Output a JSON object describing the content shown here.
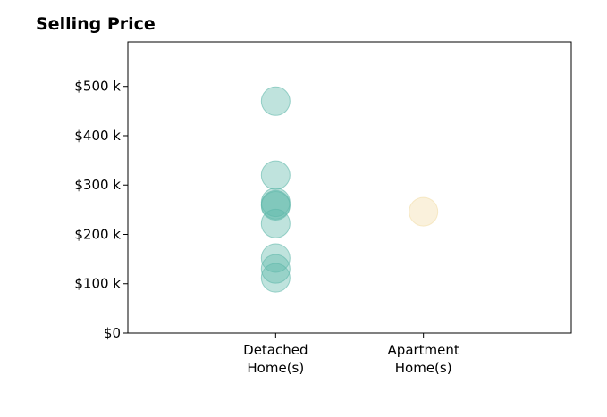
{
  "chart_data": {
    "type": "scatter",
    "title": "Selling Price",
    "xlabel": "",
    "ylabel": "",
    "grid": false,
    "categories": [
      "Detached\nHome(s)",
      "Apartment\nHome(s)"
    ],
    "xlim": [
      0,
      3
    ],
    "ylim": [
      0,
      590000
    ],
    "yticks": [
      0,
      100000,
      200000,
      300000,
      400000,
      500000
    ],
    "ytick_labels": [
      "$0",
      "$100 k",
      "$200 k",
      "$300 k",
      "$400 k",
      "$500 k"
    ],
    "series": [
      {
        "category": "Detached\nHome(s)",
        "color": "#5fb8aa",
        "values": [
          470000,
          320000,
          265000,
          260000,
          258000,
          222000,
          152000,
          130000,
          112000
        ]
      },
      {
        "category": "Apartment\nHome(s)",
        "color": "#f2dda8",
        "values": [
          246000
        ]
      }
    ]
  }
}
